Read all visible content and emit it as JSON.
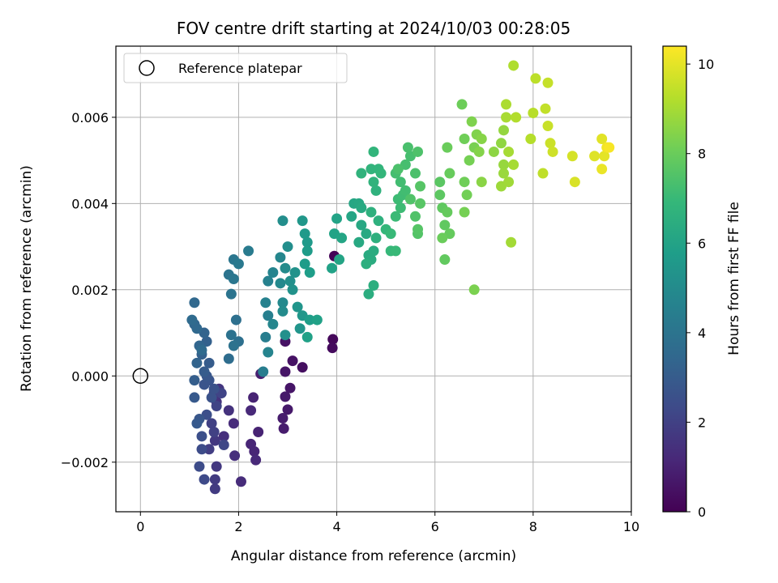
{
  "chart_data": {
    "type": "scatter",
    "title": "FOV centre drift starting at 2024/10/03 00:28:05",
    "xlabel": "Angular distance from reference (arcmin)",
    "ylabel": "Rotation from reference (arcmin)",
    "xlim": [
      -0.5,
      10.0
    ],
    "ylim": [
      -0.00315,
      0.00765
    ],
    "x_ticks": [
      0,
      2,
      4,
      6,
      8,
      10
    ],
    "x_tick_labels": [
      "0",
      "2",
      "4",
      "6",
      "8",
      "10"
    ],
    "y_ticks": [
      -0.002,
      0.0,
      0.002,
      0.004,
      0.006
    ],
    "y_tick_labels": [
      "−0.002",
      "0.000",
      "0.002",
      "0.004",
      "0.006"
    ],
    "grid": true,
    "legend": {
      "placement": "upper-left",
      "entries": [
        "Reference platepar"
      ]
    },
    "reference_point": {
      "x": 0.0,
      "y": 0.0,
      "marker": "hollow-circle",
      "color": "#000000"
    },
    "colorbar": {
      "label": "Hours from first FF file",
      "range": [
        0,
        10.4
      ],
      "ticks": [
        0,
        2,
        4,
        6,
        8,
        10
      ],
      "tick_labels": [
        "0",
        "2",
        "4",
        "6",
        "8",
        "10"
      ],
      "colormap": "viridis"
    },
    "points": [
      [
        3.95,
        0.00278,
        0.1
      ],
      [
        3.92,
        0.00085,
        0.2
      ],
      [
        3.91,
        0.00065,
        0.3
      ],
      [
        3.3,
        0.0002,
        0.4
      ],
      [
        3.1,
        0.00035,
        0.5
      ],
      [
        2.95,
        0.0008,
        0.5
      ],
      [
        3.05,
        -0.00028,
        0.6
      ],
      [
        2.95,
        0.0001,
        0.6
      ],
      [
        2.95,
        -0.00048,
        0.7
      ],
      [
        3.0,
        -0.00078,
        0.7
      ],
      [
        2.9,
        -0.00098,
        0.8
      ],
      [
        2.92,
        -0.00122,
        0.8
      ],
      [
        2.45,
        5e-05,
        0.9
      ],
      [
        2.3,
        -0.0005,
        1.0
      ],
      [
        2.4,
        -0.0013,
        1.0
      ],
      [
        2.25,
        -0.00158,
        1.1
      ],
      [
        2.32,
        -0.00175,
        1.1
      ],
      [
        2.35,
        -0.00195,
        1.2
      ],
      [
        2.25,
        -0.0008,
        1.2
      ],
      [
        2.05,
        -0.00245,
        1.3
      ],
      [
        1.9,
        -0.0011,
        1.3
      ],
      [
        1.92,
        -0.00185,
        1.4
      ],
      [
        1.7,
        -0.0014,
        1.4
      ],
      [
        1.8,
        -0.0008,
        1.5
      ],
      [
        1.55,
        -0.0006,
        1.5
      ],
      [
        1.5,
        -0.0004,
        1.6
      ],
      [
        1.6,
        -0.0003,
        1.6
      ],
      [
        1.52,
        -0.0015,
        1.7
      ],
      [
        1.55,
        -0.0021,
        1.7
      ],
      [
        1.52,
        -0.00262,
        1.8
      ],
      [
        1.52,
        -0.0024,
        1.8
      ],
      [
        1.4,
        -0.0017,
        1.9
      ],
      [
        1.45,
        -0.0011,
        2.0
      ],
      [
        1.5,
        -0.0013,
        2.0
      ],
      [
        1.55,
        -0.0007,
        2.1
      ],
      [
        1.65,
        -0.0004,
        2.1
      ],
      [
        1.7,
        -0.0016,
        2.2
      ],
      [
        1.3,
        -0.0024,
        2.3
      ],
      [
        1.25,
        -0.0017,
        2.4
      ],
      [
        1.2,
        -0.0021,
        2.4
      ],
      [
        1.25,
        -0.0014,
        2.5
      ],
      [
        1.35,
        -0.0009,
        2.5
      ],
      [
        1.45,
        -0.0005,
        2.6
      ],
      [
        1.5,
        -0.0003,
        2.6
      ],
      [
        1.3,
        -0.0002,
        2.7
      ],
      [
        1.4,
        -0.0001,
        2.7
      ],
      [
        1.35,
        0.0,
        2.8
      ],
      [
        1.2,
        -0.001,
        2.8
      ],
      [
        1.1,
        -0.0005,
        2.9
      ],
      [
        1.15,
        -0.0011,
        2.9
      ],
      [
        1.3,
        0.0001,
        3.0
      ],
      [
        1.4,
        0.0003,
        3.0
      ],
      [
        1.1,
        -0.0001,
        3.1
      ],
      [
        1.35,
        0.0008,
        3.2
      ],
      [
        1.25,
        0.0005,
        3.2
      ],
      [
        1.15,
        0.0003,
        3.3
      ],
      [
        1.3,
        0.001,
        3.3
      ],
      [
        1.2,
        0.0007,
        3.4
      ],
      [
        1.1,
        0.0012,
        3.4
      ],
      [
        1.1,
        0.0017,
        3.5
      ],
      [
        1.15,
        0.0011,
        3.5
      ],
      [
        1.05,
        0.0013,
        3.6
      ],
      [
        1.25,
        0.0006,
        3.6
      ],
      [
        1.8,
        0.0004,
        3.7
      ],
      [
        1.95,
        0.0013,
        3.8
      ],
      [
        2.0,
        0.0008,
        3.8
      ],
      [
        1.9,
        0.0007,
        3.9
      ],
      [
        1.85,
        0.00095,
        3.9
      ],
      [
        1.85,
        0.0019,
        4.0
      ],
      [
        1.8,
        0.00235,
        4.0
      ],
      [
        1.9,
        0.00225,
        4.1
      ],
      [
        1.9,
        0.0027,
        4.1
      ],
      [
        2.0,
        0.0026,
        4.2
      ],
      [
        2.2,
        0.0029,
        4.3
      ],
      [
        2.5,
        0.0001,
        4.4
      ],
      [
        2.55,
        0.0009,
        4.4
      ],
      [
        2.6,
        0.0014,
        4.5
      ],
      [
        2.55,
        0.0017,
        4.6
      ],
      [
        2.6,
        0.0022,
        4.6
      ],
      [
        2.7,
        0.0024,
        4.7
      ],
      [
        2.6,
        0.00055,
        4.7
      ],
      [
        2.7,
        0.0012,
        4.8
      ],
      [
        2.85,
        0.00275,
        4.8
      ],
      [
        2.9,
        0.0017,
        4.9
      ],
      [
        2.85,
        0.00215,
        4.9
      ],
      [
        2.9,
        0.0015,
        5.0
      ],
      [
        2.95,
        0.0025,
        5.0
      ],
      [
        3.0,
        0.003,
        5.1
      ],
      [
        2.9,
        0.0036,
        5.1
      ],
      [
        2.95,
        0.00095,
        5.2
      ],
      [
        3.05,
        0.0022,
        5.2
      ],
      [
        3.1,
        0.002,
        5.3
      ],
      [
        3.15,
        0.0024,
        5.3
      ],
      [
        3.2,
        0.0016,
        5.4
      ],
      [
        3.25,
        0.0011,
        5.4
      ],
      [
        3.3,
        0.0014,
        5.5
      ],
      [
        3.3,
        0.0036,
        5.5
      ],
      [
        3.35,
        0.0033,
        5.6
      ],
      [
        3.4,
        0.0031,
        5.6
      ],
      [
        3.35,
        0.0026,
        5.7
      ],
      [
        3.4,
        0.0029,
        5.7
      ],
      [
        3.45,
        0.0024,
        5.8
      ],
      [
        3.45,
        0.0013,
        5.8
      ],
      [
        3.4,
        0.0009,
        5.9
      ],
      [
        3.6,
        0.0013,
        5.9
      ],
      [
        3.9,
        0.0025,
        5.95
      ],
      [
        3.95,
        0.0033,
        6.0
      ],
      [
        4.0,
        0.00365,
        6.0
      ],
      [
        4.05,
        0.0027,
        6.05
      ],
      [
        4.1,
        0.0032,
        6.1
      ],
      [
        4.3,
        0.0037,
        6.1
      ],
      [
        4.35,
        0.004,
        6.15
      ],
      [
        4.45,
        0.004,
        6.2
      ],
      [
        4.5,
        0.0035,
        6.2
      ],
      [
        4.45,
        0.0031,
        6.25
      ],
      [
        4.5,
        0.0039,
        6.3
      ],
      [
        4.6,
        0.0033,
        6.3
      ],
      [
        4.65,
        0.0028,
        6.35
      ],
      [
        4.7,
        0.0027,
        6.4
      ],
      [
        4.75,
        0.0029,
        6.4
      ],
      [
        4.65,
        0.0019,
        6.45
      ],
      [
        4.75,
        0.0021,
        6.5
      ],
      [
        4.6,
        0.0026,
        6.5
      ],
      [
        4.8,
        0.0032,
        6.55
      ],
      [
        4.85,
        0.0036,
        6.6
      ],
      [
        4.7,
        0.0038,
        6.6
      ],
      [
        4.8,
        0.0043,
        6.65
      ],
      [
        4.75,
        0.0045,
        6.7
      ],
      [
        4.5,
        0.0047,
        6.7
      ],
      [
        4.7,
        0.0048,
        6.75
      ],
      [
        4.85,
        0.0048,
        6.8
      ],
      [
        4.75,
        0.0052,
        6.8
      ],
      [
        4.9,
        0.0047,
        6.85
      ],
      [
        5.0,
        0.0034,
        6.9
      ],
      [
        5.1,
        0.0029,
        6.95
      ],
      [
        5.2,
        0.0029,
        7.0
      ],
      [
        5.1,
        0.0033,
        7.0
      ],
      [
        5.2,
        0.0037,
        7.05
      ],
      [
        5.3,
        0.0039,
        7.1
      ],
      [
        5.25,
        0.0041,
        7.1
      ],
      [
        5.35,
        0.0042,
        7.15
      ],
      [
        5.4,
        0.0043,
        7.2
      ],
      [
        5.3,
        0.0045,
        7.2
      ],
      [
        5.2,
        0.0047,
        7.25
      ],
      [
        5.4,
        0.0049,
        7.3
      ],
      [
        5.5,
        0.0051,
        7.3
      ],
      [
        5.45,
        0.0053,
        7.35
      ],
      [
        5.25,
        0.0048,
        7.4
      ],
      [
        5.6,
        0.0047,
        7.4
      ],
      [
        5.65,
        0.0052,
        7.45
      ],
      [
        5.5,
        0.0041,
        7.5
      ],
      [
        5.6,
        0.0037,
        7.5
      ],
      [
        5.65,
        0.0033,
        7.55
      ],
      [
        5.65,
        0.0034,
        7.6
      ],
      [
        5.7,
        0.0044,
        7.6
      ],
      [
        5.7,
        0.004,
        7.65
      ],
      [
        6.1,
        0.0045,
        7.7
      ],
      [
        6.1,
        0.0042,
        7.75
      ],
      [
        6.15,
        0.0039,
        7.8
      ],
      [
        6.2,
        0.0035,
        7.8
      ],
      [
        6.2,
        0.0027,
        7.85
      ],
      [
        6.3,
        0.0033,
        7.9
      ],
      [
        6.25,
        0.0038,
        7.9
      ],
      [
        6.3,
        0.0047,
        7.95
      ],
      [
        6.25,
        0.0053,
        8.0
      ],
      [
        6.15,
        0.0032,
        8.0
      ],
      [
        6.55,
        0.0063,
        8.05
      ],
      [
        6.6,
        0.0055,
        8.1
      ],
      [
        6.6,
        0.0045,
        8.1
      ],
      [
        6.65,
        0.0042,
        8.15
      ],
      [
        6.6,
        0.0038,
        8.2
      ],
      [
        6.7,
        0.005,
        8.2
      ],
      [
        6.8,
        0.0053,
        8.25
      ],
      [
        6.8,
        0.002,
        8.3
      ],
      [
        6.75,
        0.0059,
        8.35
      ],
      [
        6.85,
        0.0056,
        8.4
      ],
      [
        6.9,
        0.0052,
        8.45
      ],
      [
        6.95,
        0.0055,
        8.5
      ],
      [
        6.95,
        0.0045,
        8.55
      ],
      [
        7.2,
        0.0052,
        8.6
      ],
      [
        7.35,
        0.0054,
        8.65
      ],
      [
        7.4,
        0.0057,
        8.7
      ],
      [
        7.4,
        0.0049,
        8.75
      ],
      [
        7.4,
        0.0047,
        8.8
      ],
      [
        7.35,
        0.0044,
        8.85
      ],
      [
        7.5,
        0.0045,
        8.9
      ],
      [
        7.55,
        0.0031,
        8.95
      ],
      [
        7.5,
        0.0052,
        9.0
      ],
      [
        7.6,
        0.0049,
        9.0
      ],
      [
        7.45,
        0.006,
        9.05
      ],
      [
        7.45,
        0.0063,
        9.1
      ],
      [
        7.6,
        0.0072,
        9.15
      ],
      [
        7.65,
        0.006,
        9.2
      ],
      [
        7.95,
        0.0055,
        9.25
      ],
      [
        8.0,
        0.0061,
        9.3
      ],
      [
        8.05,
        0.0069,
        9.35
      ],
      [
        8.2,
        0.0047,
        9.4
      ],
      [
        8.25,
        0.0062,
        9.45
      ],
      [
        8.3,
        0.0068,
        9.5
      ],
      [
        8.3,
        0.0058,
        9.55
      ],
      [
        8.35,
        0.0054,
        9.6
      ],
      [
        8.4,
        0.0052,
        9.65
      ],
      [
        8.8,
        0.0051,
        9.75
      ],
      [
        8.85,
        0.0045,
        9.8
      ],
      [
        9.25,
        0.0051,
        9.9
      ],
      [
        9.4,
        0.0055,
        9.95
      ],
      [
        9.45,
        0.0051,
        10.0
      ],
      [
        9.4,
        0.0048,
        10.1
      ],
      [
        9.5,
        0.0053,
        10.2
      ],
      [
        9.55,
        0.0053,
        10.3
      ]
    ]
  }
}
